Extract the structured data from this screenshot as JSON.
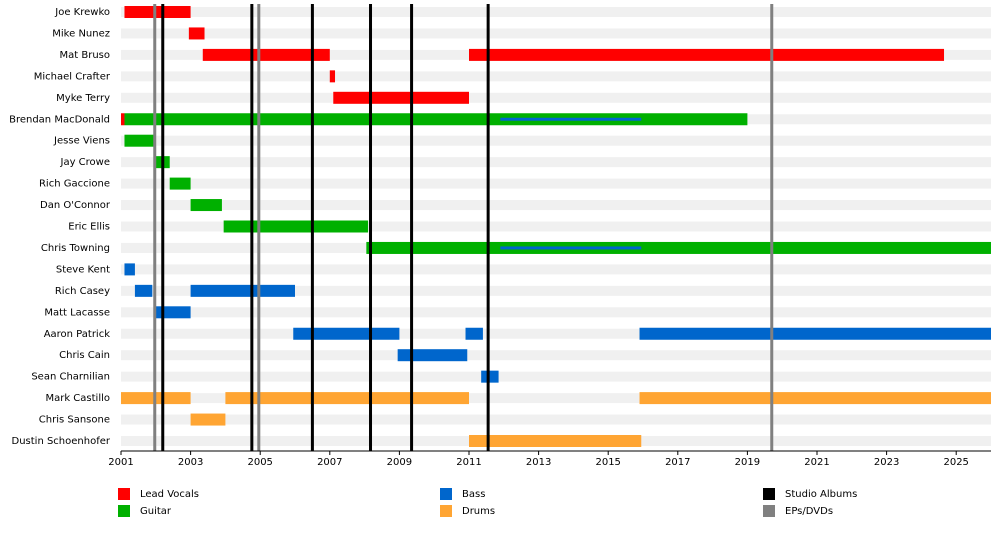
{
  "chart_data": {
    "type": "timeline",
    "categories": [
      "Joe Krewko",
      "Mike Nunez",
      "Mat Bruso",
      "Michael Crafter",
      "Myke Terry",
      "Brendan MacDonald",
      "Jesse Viens",
      "Jay Crowe",
      "Rich Gaccione",
      "Dan O'Connor",
      "Eric Ellis",
      "Chris Towning",
      "Steve Kent",
      "Rich Casey",
      "Matt Lacasse",
      "Aaron Patrick",
      "Chris Cain",
      "Sean Charnilian",
      "Mark Castillo",
      "Chris Sansone",
      "Dustin Schoenhofer"
    ],
    "series": [
      {
        "name": "Lead Vocals",
        "color": "#ff0000",
        "values": [
          [
            [
              2001.1,
              2003.0
            ]
          ],
          [
            [
              2002.95,
              2003.4
            ]
          ],
          [
            [
              2003.35,
              2007.0
            ],
            [
              2011.0,
              2024.65
            ]
          ],
          [
            [
              2007.0,
              2007.15
            ]
          ],
          [
            [
              2007.1,
              2011.0
            ]
          ],
          [
            [
              2001.0,
              2001.1
            ]
          ],
          [],
          [],
          [],
          [],
          [],
          [],
          [],
          [],
          [],
          [],
          [],
          [],
          [],
          [],
          []
        ]
      },
      {
        "name": "Guitar",
        "color": "#00b000",
        "values": [
          [],
          [],
          [],
          [],
          [],
          [
            [
              2001.1,
              2019.0
            ]
          ],
          [
            [
              2001.1,
              2002.0
            ]
          ],
          [
            [
              2001.95,
              2002.4
            ]
          ],
          [
            [
              2002.4,
              2003.0
            ]
          ],
          [
            [
              2003.0,
              2003.9
            ]
          ],
          [
            [
              2003.95,
              2008.1
            ]
          ],
          [
            [
              2008.05,
              2026.0
            ]
          ],
          [],
          [],
          [],
          [],
          [],
          [],
          [],
          [],
          []
        ]
      },
      {
        "name": "Bass",
        "color": "#0066cc",
        "values": [
          [],
          [],
          [],
          [],
          [],
          [
            [
              2011.9,
              2015.95
            ]
          ],
          [],
          [],
          [],
          [],
          [],
          [
            [
              2011.9,
              2015.95
            ]
          ],
          [
            [
              2001.1,
              2001.4
            ]
          ],
          [
            [
              2001.4,
              2001.9
            ],
            [
              2003.0,
              2006.0
            ]
          ],
          [
            [
              2001.95,
              2003.0
            ]
          ],
          [
            [
              2005.95,
              2009.0
            ],
            [
              2010.9,
              2011.4
            ],
            [
              2015.9,
              2026.0
            ]
          ],
          [
            [
              2008.95,
              2010.95
            ]
          ],
          [
            [
              2011.35,
              2011.85
            ]
          ],
          [],
          [],
          []
        ]
      },
      {
        "name": "Drums",
        "color": "#ffa533",
        "values": [
          [],
          [],
          [],
          [],
          [],
          [],
          [],
          [],
          [],
          [],
          [],
          [],
          [],
          [],
          [],
          [],
          [],
          [],
          [
            [
              2001.0,
              2003.0
            ],
            [
              2004.0,
              2011.0
            ],
            [
              2015.9,
              2026.0
            ]
          ],
          [
            [
              2003.0,
              2004.0
            ]
          ],
          [
            [
              2011.0,
              2015.95
            ]
          ]
        ]
      }
    ],
    "lines": [
      {
        "name": "Studio Albums",
        "color": "#000000",
        "values": [
          2002.2,
          2004.76,
          2006.5,
          2008.17,
          2009.35,
          2011.55
        ]
      },
      {
        "name": "EPs/DVDs",
        "color": "#808080",
        "values": [
          2001.97,
          2004.96,
          2019.7
        ]
      }
    ],
    "xlim": [
      2001,
      2026
    ],
    "xticks": [
      2001,
      2003,
      2005,
      2007,
      2009,
      2011,
      2013,
      2015,
      2017,
      2019,
      2021,
      2023,
      2025
    ]
  }
}
